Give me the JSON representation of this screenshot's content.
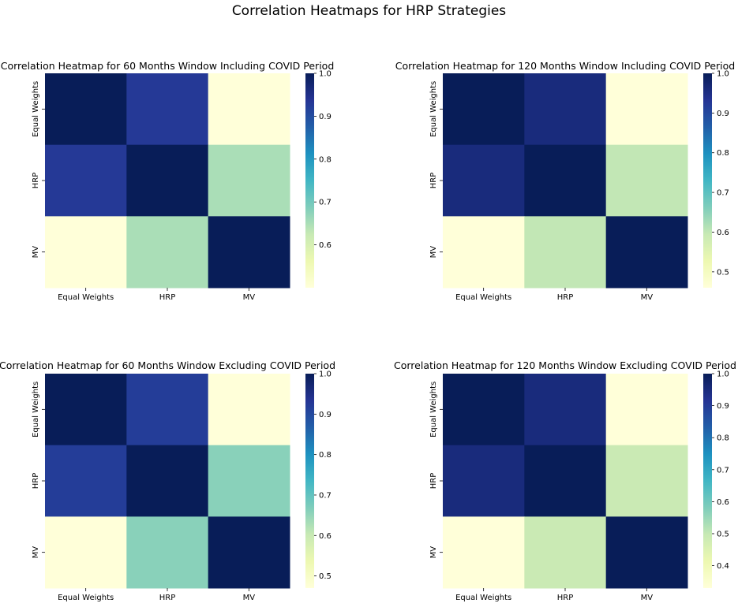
{
  "figure": {
    "title": "Correlation Heatmaps for HRP Strategies"
  },
  "chart_data": [
    {
      "type": "heatmap",
      "title": "Correlation Heatmap for 60 Months Window Including COVID Period",
      "x_labels": [
        "Equal Weights",
        "HRP",
        "MV"
      ],
      "y_labels": [
        "Equal Weights",
        "HRP",
        "MV"
      ],
      "values": [
        [
          1.0,
          0.93,
          0.5
        ],
        [
          0.93,
          1.0,
          0.65
        ],
        [
          0.5,
          0.65,
          1.0
        ]
      ],
      "colorbar_range": [
        0.5,
        1.0
      ],
      "colorbar_ticks": [
        "0.6",
        "0.7",
        "0.8",
        "0.9",
        "1.0"
      ],
      "colorbar_tick_values": [
        0.6,
        0.7,
        0.8,
        0.9,
        1.0
      ],
      "colormap": "YlGnBu"
    },
    {
      "type": "heatmap",
      "title": "Correlation Heatmap for 120 Months Window Including COVID Period",
      "x_labels": [
        "Equal Weights",
        "HRP",
        "MV"
      ],
      "y_labels": [
        "Equal Weights",
        "HRP",
        "MV"
      ],
      "values": [
        [
          1.0,
          0.96,
          0.46
        ],
        [
          0.96,
          1.0,
          0.6
        ],
        [
          0.46,
          0.6,
          1.0
        ]
      ],
      "colorbar_range": [
        0.46,
        1.0
      ],
      "colorbar_ticks": [
        "0.5",
        "0.6",
        "0.7",
        "0.8",
        "0.9",
        "1.0"
      ],
      "colorbar_tick_values": [
        0.5,
        0.6,
        0.7,
        0.8,
        0.9,
        1.0
      ],
      "colormap": "YlGnBu"
    },
    {
      "type": "heatmap",
      "title": "Correlation Heatmap for 60 Months Window Excluding COVID Period",
      "x_labels": [
        "Equal Weights",
        "HRP",
        "MV"
      ],
      "y_labels": [
        "Equal Weights",
        "HRP",
        "MV"
      ],
      "values": [
        [
          1.0,
          0.92,
          0.47
        ],
        [
          0.92,
          1.0,
          0.66
        ],
        [
          0.47,
          0.66,
          1.0
        ]
      ],
      "colorbar_range": [
        0.47,
        1.0
      ],
      "colorbar_ticks": [
        "0.5",
        "0.6",
        "0.7",
        "0.8",
        "0.9",
        "1.0"
      ],
      "colorbar_tick_values": [
        0.5,
        0.6,
        0.7,
        0.8,
        0.9,
        1.0
      ],
      "colormap": "YlGnBu"
    },
    {
      "type": "heatmap",
      "title": "Correlation Heatmap for 120 Months Window Excluding COVID Period",
      "x_labels": [
        "Equal Weights",
        "HRP",
        "MV"
      ],
      "y_labels": [
        "Equal Weights",
        "HRP",
        "MV"
      ],
      "values": [
        [
          1.0,
          0.95,
          0.33
        ],
        [
          0.95,
          1.0,
          0.49
        ],
        [
          0.33,
          0.49,
          1.0
        ]
      ],
      "colorbar_range": [
        0.33,
        1.0
      ],
      "colorbar_ticks": [
        "0.4",
        "0.5",
        "0.6",
        "0.7",
        "0.8",
        "0.9",
        "1.0"
      ],
      "colorbar_tick_values": [
        0.4,
        0.5,
        0.6,
        0.7,
        0.8,
        0.9,
        1.0
      ],
      "colormap": "YlGnBu"
    }
  ]
}
